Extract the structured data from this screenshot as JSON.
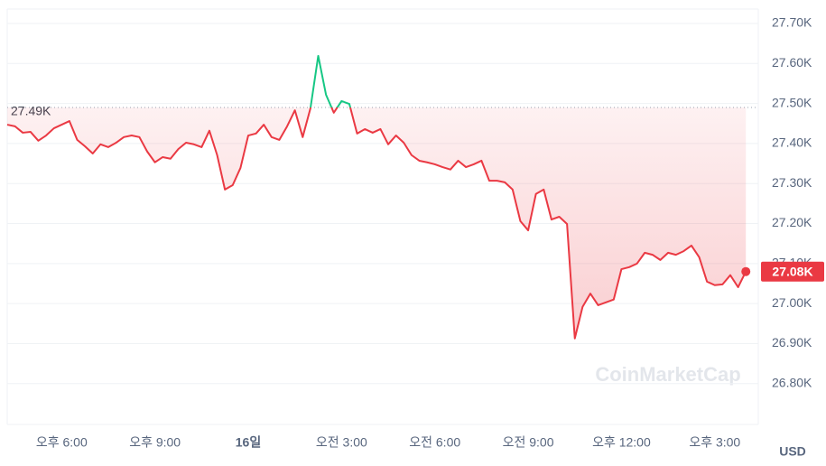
{
  "chart_data": {
    "type": "line",
    "x": [
      16.25,
      16.5,
      16.75,
      17,
      17.25,
      17.5,
      17.75,
      18,
      18.25,
      18.5,
      18.75,
      19,
      19.25,
      19.5,
      19.75,
      20,
      20.25,
      20.5,
      20.75,
      21,
      21.25,
      21.5,
      21.75,
      22,
      22.25,
      22.5,
      22.75,
      23,
      23.25,
      23.5,
      23.75,
      24,
      24.25,
      24.5,
      24.75,
      25,
      25.25,
      25.5,
      25.75,
      26,
      26.25,
      26.5,
      26.75,
      27,
      27.25,
      27.5,
      27.75,
      28,
      28.25,
      28.5,
      28.75,
      29,
      29.25,
      29.5,
      29.75,
      30,
      30.25,
      30.5,
      30.75,
      31,
      31.25,
      31.5,
      31.75,
      32,
      32.25,
      32.5,
      32.75,
      33,
      33.25,
      33.5,
      33.75,
      34,
      34.25,
      34.5,
      34.75,
      35,
      35.25,
      35.5,
      35.75,
      36,
      36.25,
      36.5,
      36.75,
      37,
      37.25,
      37.5,
      37.75,
      38,
      38.25,
      38.5,
      38.75,
      39,
      39.25,
      39.5,
      39.75,
      40
    ],
    "values": [
      27447,
      27443,
      27427,
      27429,
      27407,
      27420,
      27438,
      27447,
      27456,
      27409,
      27393,
      27375,
      27398,
      27391,
      27402,
      27416,
      27420,
      27416,
      27380,
      27353,
      27366,
      27362,
      27386,
      27402,
      27398,
      27391,
      27432,
      27371,
      27285,
      27296,
      27339,
      27420,
      27425,
      27447,
      27416,
      27409,
      27443,
      27483,
      27416,
      27488,
      27619,
      27522,
      27477,
      27506,
      27499,
      27425,
      27436,
      27427,
      27436,
      27398,
      27420,
      27402,
      27371,
      27357,
      27353,
      27348,
      27341,
      27335,
      27357,
      27341,
      27348,
      27357,
      27307,
      27307,
      27303,
      27285,
      27206,
      27183,
      27274,
      27285,
      27210,
      27217,
      27199,
      26913,
      26992,
      27025,
      26996,
      27003,
      27010,
      27086,
      27091,
      27100,
      27127,
      27122,
      27109,
      27127,
      27122,
      27131,
      27145,
      27116,
      27055,
      27046,
      27048,
      27071,
      27041,
      27080
    ],
    "up_color": "#16c784",
    "down_color": "#ea3943",
    "xlim": [
      16.25,
      40.4
    ],
    "ylim": [
      26698,
      27736
    ],
    "xticks": [
      {
        "value": 18,
        "label": "오후 6:00"
      },
      {
        "value": 21,
        "label": "오후 9:00"
      },
      {
        "value": 24,
        "label": "16일"
      },
      {
        "value": 27,
        "label": "오전 3:00"
      },
      {
        "value": 30,
        "label": "오전 6:00"
      },
      {
        "value": 33,
        "label": "오전 9:00"
      },
      {
        "value": 36,
        "label": "오후 12:00"
      },
      {
        "value": 39,
        "label": "오후 3:00"
      }
    ],
    "yticks": [
      {
        "value": 26800,
        "label": "26.80K"
      },
      {
        "value": 26900,
        "label": "26.90K"
      },
      {
        "value": 27000,
        "label": "27.00K"
      },
      {
        "value": 27100,
        "label": "27.10K"
      },
      {
        "value": 27200,
        "label": "27.20K"
      },
      {
        "value": 27300,
        "label": "27.30K"
      },
      {
        "value": 27400,
        "label": "27.40K"
      },
      {
        "value": 27500,
        "label": "27.50K"
      },
      {
        "value": 27600,
        "label": "27.60K"
      },
      {
        "value": 27700,
        "label": "27.70K"
      }
    ],
    "grid": true,
    "reference": {
      "value": 27490,
      "label": "27.49K"
    },
    "current": {
      "value": 27080,
      "label": "27.08K"
    },
    "unit_label": "USD",
    "watermark": "CoinMarketCap"
  }
}
